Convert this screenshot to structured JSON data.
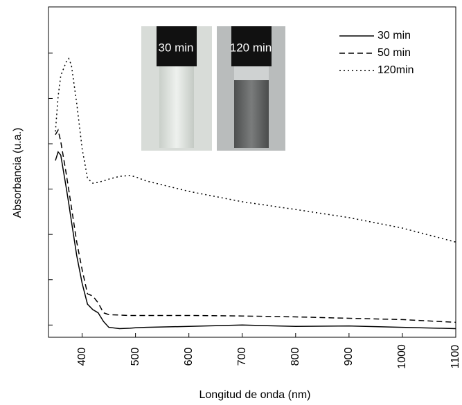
{
  "chart_data": {
    "type": "line",
    "xlabel": "Longitud de onda (nm)",
    "ylabel": "Absorbancia (u.a.)",
    "annotations": [
      "30 min",
      "120 min"
    ],
    "xlim": [
      337,
      1100
    ],
    "xticks": [
      400,
      500,
      600,
      700,
      800,
      900,
      1000,
      1100
    ],
    "ylim": [
      -0.27,
      7.02
    ],
    "yticks": [
      0,
      1,
      2,
      3,
      4,
      5,
      6
    ],
    "x": [
      350,
      355,
      360,
      370,
      375,
      380,
      390,
      400,
      410,
      420,
      430,
      440,
      450,
      470,
      490,
      500,
      520,
      600,
      700,
      800,
      900,
      1000,
      1100
    ],
    "series": [
      {
        "name": "30 min",
        "color": "#000",
        "dash": "solid",
        "values": [
          3.63,
          3.82,
          3.75,
          3.05,
          2.68,
          2.29,
          1.53,
          0.92,
          0.46,
          0.34,
          0.27,
          0.08,
          -0.05,
          -0.08,
          -0.07,
          -0.06,
          -0.05,
          -0.03,
          0,
          -0.03,
          -0.02,
          -0.05,
          -0.08
        ]
      },
      {
        "name": "50 min",
        "color": "#000",
        "dash": "dashed",
        "values": [
          4.2,
          4.3,
          4.05,
          3.36,
          2.98,
          2.6,
          1.83,
          1.22,
          0.69,
          0.64,
          0.49,
          0.27,
          0.23,
          0.22,
          0.21,
          0.21,
          0.21,
          0.21,
          0.2,
          0.18,
          0.15,
          0.12,
          0.06
        ]
      },
      {
        "name": "120min",
        "color": "#000",
        "dash": "dotted",
        "values": [
          4.27,
          5.04,
          5.5,
          5.8,
          5.88,
          5.73,
          4.89,
          3.89,
          3.24,
          3.13,
          3.15,
          3.18,
          3.22,
          3.28,
          3.3,
          3.27,
          3.18,
          2.95,
          2.72,
          2.55,
          2.37,
          2.14,
          1.83
        ]
      }
    ],
    "legend": "upper-right"
  }
}
